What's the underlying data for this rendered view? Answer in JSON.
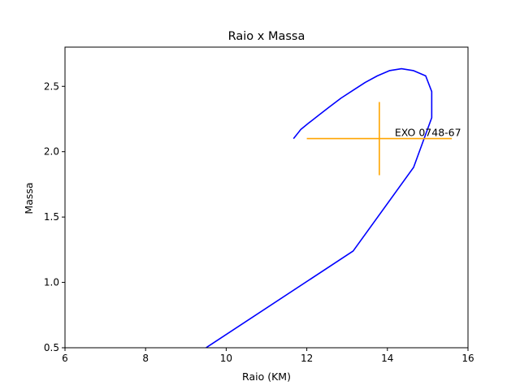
{
  "chart_data": {
    "type": "line",
    "title": "Raio x Massa",
    "xlabel": "Raio (KM)",
    "ylabel": "Massa",
    "xlim": [
      6,
      16
    ],
    "ylim": [
      0.5,
      2.8
    ],
    "xticks": [
      "6",
      "8",
      "10",
      "12",
      "14",
      "16"
    ],
    "yticks": [
      "0.5",
      "1.0",
      "1.5",
      "2.0",
      "2.5"
    ],
    "grid": false,
    "series": [
      {
        "color": "#0000ff",
        "x": [
          9.5,
          13.15,
          14.65,
          15.1,
          15.1,
          14.95,
          14.65,
          14.35,
          14.05,
          13.75,
          13.45,
          13.15,
          12.85,
          12.55,
          12.3,
          12.05,
          11.85,
          11.8,
          11.67
        ],
        "y": [
          0.5,
          1.24,
          1.88,
          2.26,
          2.46,
          2.58,
          2.62,
          2.635,
          2.62,
          2.58,
          2.53,
          2.47,
          2.41,
          2.34,
          2.28,
          2.22,
          2.17,
          2.15,
          2.1
        ]
      }
    ],
    "annotations": [
      {
        "label": "EXO 0748-67",
        "x": 13.8,
        "y": 2.1,
        "xerr": [
          12.0,
          15.6
        ],
        "yerr": [
          1.82,
          2.38
        ],
        "color": "#ffa500"
      }
    ]
  }
}
